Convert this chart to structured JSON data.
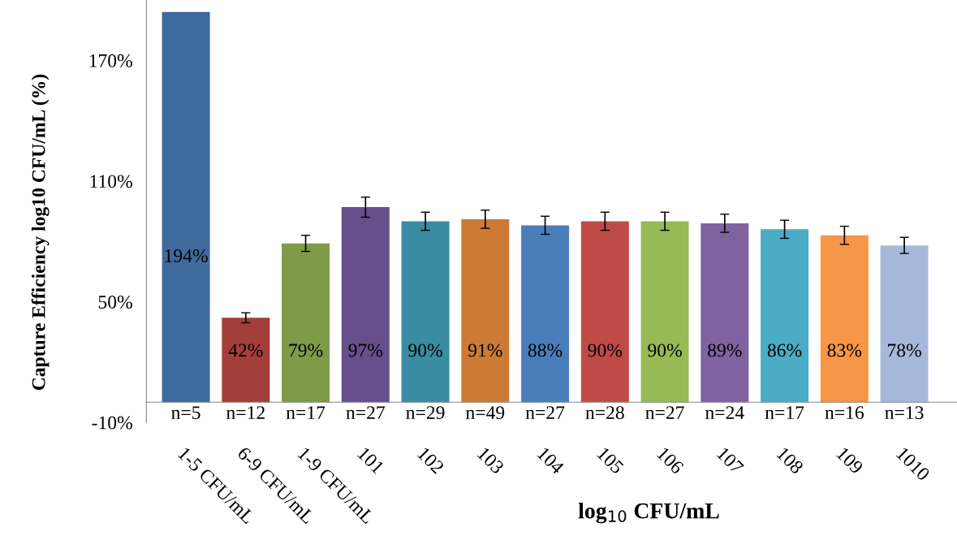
{
  "chart_data": {
    "type": "bar",
    "ylabel": "Capture Efficiency log10 CFU/mL (%)",
    "xlabel": "log$_{10}$ CFU/mL",
    "categories": [
      "1-5 CFU/mL",
      "6-9 CFU/mL",
      "1-9 CFU/mL",
      "101",
      "102",
      "103",
      "104",
      "105",
      "106",
      "107",
      "108",
      "109",
      "1010"
    ],
    "values": [
      194,
      42,
      79,
      97,
      90,
      91,
      88,
      90,
      90,
      89,
      86,
      83,
      78
    ],
    "errors": [
      null,
      2.5,
      4,
      5,
      4.5,
      4.5,
      4.5,
      4.5,
      4.5,
      4.5,
      4.5,
      4.5,
      4
    ],
    "colors": [
      "#3f6a9c",
      "#a23f3b",
      "#7f9a48",
      "#664f8a",
      "#3a8ca3",
      "#cc7a35",
      "#4a7ebb",
      "#be4b48",
      "#98b954",
      "#7f63a1",
      "#4bacc6",
      "#f79646",
      "#a7b9db"
    ],
    "value_labels": [
      "194%",
      "42%",
      "79%",
      "97%",
      "90%",
      "91%",
      "88%",
      "90%",
      "90%",
      "89%",
      "86%",
      "83%",
      "78%"
    ],
    "annotations": [
      "n=5",
      "n=12",
      "n=17",
      "n=27",
      "n=29",
      "n=49",
      "n=27",
      "n=28",
      "n=27",
      "n=24",
      "n=17",
      "n=16",
      "n=13"
    ],
    "ylim": [
      -10,
      200
    ],
    "yticks": [
      {
        "value": -10,
        "label": "-10%"
      },
      {
        "value": 50,
        "label": "50%"
      },
      {
        "value": 110,
        "label": "110%"
      },
      {
        "value": 170,
        "label": "170%"
      }
    ],
    "grid": false,
    "legend": false
  }
}
